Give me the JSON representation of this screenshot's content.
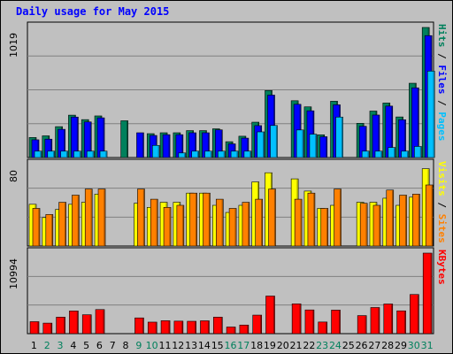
{
  "title": "Daily usage for May 2015",
  "colors": {
    "hits": "#00805c",
    "files": "#0000ff",
    "pages": "#00c0ff",
    "visits": "#ffff00",
    "sites": "#ff8000",
    "kbytes": "#ff0000",
    "weekend_label": "#00805c",
    "weekday_label": "#000000",
    "title": "#0000ff",
    "panel_bg": "#c0c0c0",
    "grid": "#808080"
  },
  "chart_data": [
    {
      "type": "bar",
      "title": "Daily usage for May 2015",
      "categories": [
        "1",
        "2",
        "3",
        "4",
        "5",
        "6",
        "7",
        "8",
        "9",
        "10",
        "11",
        "12",
        "13",
        "14",
        "15",
        "16",
        "17",
        "18",
        "19",
        "20",
        "21",
        "22",
        "23",
        "24",
        "25",
        "26",
        "27",
        "28",
        "29",
        "30",
        "31"
      ],
      "weekend_days": [
        "2",
        "3",
        "9",
        "10",
        "16",
        "17",
        "23",
        "24",
        "30",
        "31"
      ],
      "ymax_label": "1019",
      "ylim": [
        0,
        1019
      ],
      "legend": [
        "Pages",
        "Files",
        "Hits"
      ],
      "series": [
        {
          "name": "Hits",
          "values": [
            157,
            170,
            242,
            332,
            297,
            326,
            0,
            288,
            0,
            187,
            194,
            194,
            211,
            211,
            225,
            124,
            167,
            277,
            525,
            0,
            445,
            397,
            178,
            441,
            0,
            268,
            364,
            427,
            318,
            582,
            1019
          ]
        },
        {
          "name": "Files",
          "values": [
            139,
            144,
            221,
            317,
            279,
            311,
            0,
            0,
            194,
            173,
            179,
            179,
            194,
            194,
            217,
            107,
            152,
            250,
            489,
            0,
            417,
            366,
            163,
            413,
            0,
            245,
            333,
            403,
            296,
            546,
            955
          ]
        },
        {
          "name": "Pages",
          "values": [
            50,
            50,
            50,
            50,
            50,
            50,
            0,
            0,
            0,
            95,
            0,
            36,
            50,
            50,
            50,
            50,
            50,
            201,
            251,
            0,
            216,
            183,
            0,
            317,
            0,
            50,
            50,
            79,
            50,
            87,
            677
          ]
        }
      ]
    },
    {
      "type": "bar",
      "ymax_label": "80",
      "ylim": [
        0,
        80
      ],
      "legend": [
        "Sites",
        "Visits"
      ],
      "series": [
        {
          "name": "Visits",
          "values": [
            41,
            28,
            36,
            41,
            43,
            51,
            0,
            0,
            42,
            38,
            43,
            43,
            52,
            52,
            40,
            33,
            40,
            63,
            72,
            0,
            66,
            54,
            37,
            40,
            0,
            43,
            43,
            47,
            40,
            48,
            76
          ]
        },
        {
          "name": "Sites",
          "values": [
            37,
            31,
            43,
            50,
            56,
            56,
            0,
            0,
            56,
            46,
            38,
            40,
            52,
            52,
            46,
            37,
            43,
            46,
            56,
            0,
            46,
            52,
            37,
            56,
            0,
            42,
            40,
            55,
            50,
            51,
            60
          ]
        }
      ]
    },
    {
      "type": "bar",
      "ymax_label": "10994",
      "ylim": [
        0,
        10994
      ],
      "legend": [
        "KBytes"
      ],
      "series": [
        {
          "name": "KBytes",
          "values": [
            1635,
            1438,
            2251,
            3097,
            2580,
            3289,
            0,
            0,
            2149,
            1574,
            1767,
            1711,
            1691,
            1756,
            2255,
            905,
            1174,
            2531,
            5134,
            0,
            4066,
            3237,
            1588,
            3212,
            0,
            2465,
            3567,
            4050,
            3112,
            5346,
            10994
          ]
        }
      ]
    }
  ]
}
